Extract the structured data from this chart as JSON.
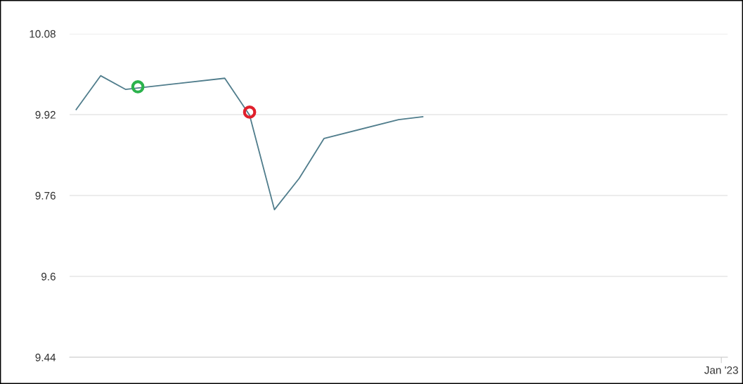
{
  "chart_data": {
    "type": "line",
    "categories": [
      null,
      null,
      null,
      null,
      null,
      null,
      null,
      null,
      null,
      null,
      null,
      null,
      null,
      null,
      null,
      null,
      null,
      null,
      null,
      null,
      null,
      null,
      null,
      null,
      null,
      null,
      null,
      null,
      null,
      null,
      null,
      null,
      null,
      null,
      null,
      null,
      null,
      null,
      null,
      null,
      null,
      null,
      null,
      null,
      null,
      null,
      null,
      null,
      null,
      null,
      null,
      null,
      "Jan '23"
    ],
    "series": [
      {
        "color": "#507d8c",
        "values": [
          9.929,
          null,
          9.997,
          null,
          9.97,
          null,
          null,
          null,
          null,
          null,
          null,
          null,
          9.992,
          null,
          9.919,
          null,
          9.732,
          null,
          9.794,
          null,
          9.873,
          null,
          null,
          null,
          null,
          null,
          9.91,
          null,
          9.916,
          null,
          null,
          null,
          null,
          null,
          null,
          null,
          null,
          null,
          null,
          null,
          null,
          null,
          null,
          null,
          null,
          null,
          null,
          null,
          null,
          null,
          null,
          null,
          null
        ]
      },
      {
        "type": "scatter",
        "marker": "circle",
        "color": "#2bb24c",
        "values": [
          null,
          null,
          null,
          null,
          null,
          9.975,
          null,
          null,
          null,
          null,
          null,
          null,
          null,
          null,
          null,
          null,
          null,
          null,
          null,
          null,
          null,
          null,
          null,
          null,
          null,
          null,
          null,
          null,
          null,
          null,
          null,
          null,
          null,
          null,
          null,
          null,
          null,
          null,
          null,
          null,
          null,
          null,
          null,
          null,
          null,
          null,
          null,
          null,
          null,
          null,
          null,
          null,
          null
        ]
      },
      {
        "type": "scatter",
        "marker": "circle",
        "color": "#e0202c",
        "values": [
          null,
          null,
          null,
          null,
          null,
          null,
          null,
          null,
          null,
          null,
          null,
          null,
          null,
          null,
          9.925,
          null,
          null,
          null,
          null,
          null,
          null,
          null,
          null,
          null,
          null,
          null,
          null,
          null,
          null,
          null,
          null,
          null,
          null,
          null,
          null,
          null,
          null,
          null,
          null,
          null,
          null,
          null,
          null,
          null,
          null,
          null,
          null,
          null,
          null,
          null,
          null,
          null,
          null
        ]
      }
    ],
    "ylim": [
      9.44,
      10.08
    ],
    "yticks": [
      9.44,
      9.6,
      9.76,
      9.92,
      10.08
    ],
    "grid": "y"
  }
}
